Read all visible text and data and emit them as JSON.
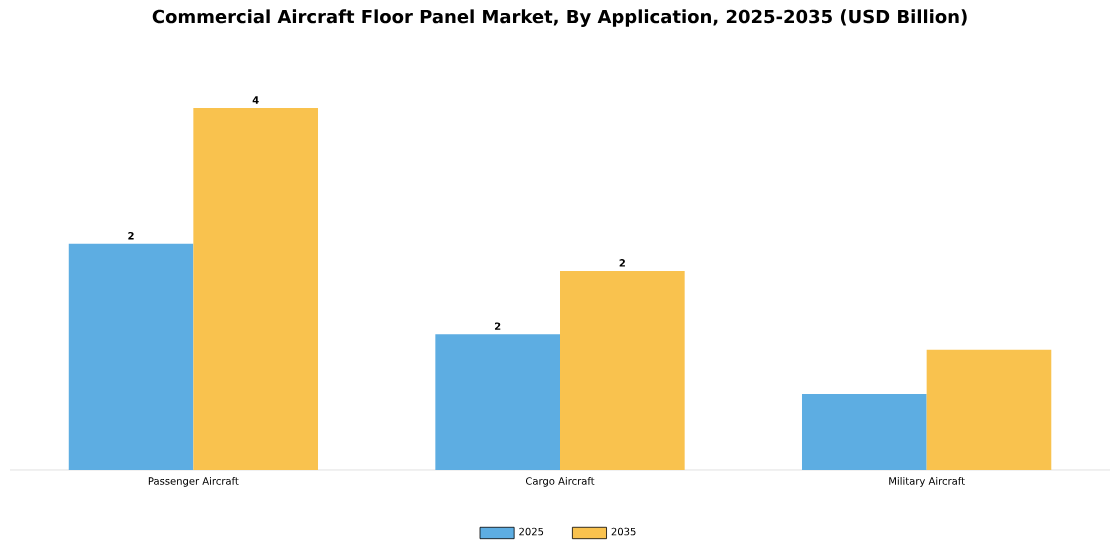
{
  "chart_data": {
    "type": "bar",
    "title": "Commercial Aircraft Floor Panel Market, By Application, 2025-2035 (USD Billion)",
    "categories": [
      "Passenger Aircraft",
      "Cargo Aircraft",
      "Military Aircraft"
    ],
    "series": [
      {
        "name": "2025",
        "color": "#5dade2",
        "values": [
          2.5,
          1.5,
          0.84
        ],
        "value_labels": [
          "2",
          "2",
          null
        ]
      },
      {
        "name": "2035",
        "color": "#f9c24e",
        "values": [
          4,
          2.2,
          1.33
        ],
        "value_labels": [
          "4",
          "2",
          null
        ]
      }
    ],
    "legend": "bottom"
  }
}
